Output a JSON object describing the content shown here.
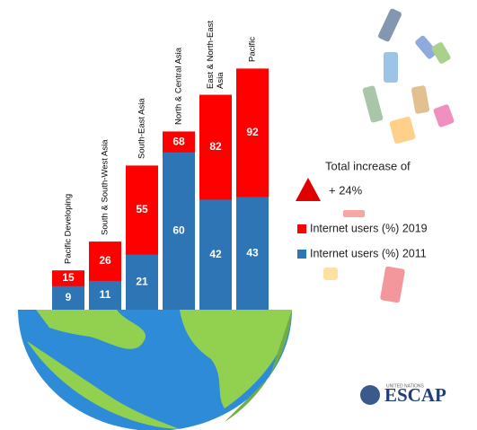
{
  "chart_data": {
    "type": "bar",
    "categories": [
      "Pacific Developing",
      "South & South-West Asia",
      "South-East Asia",
      "North & Central Asia",
      "East & North-East Asia",
      "Pacific"
    ],
    "series": [
      {
        "name": "Internet users (%) 2019",
        "color": "#ff0000",
        "values": [
          15,
          26,
          55,
          68,
          82,
          92
        ]
      },
      {
        "name": "Internet users (%) 2011",
        "color": "#2e75b6",
        "values": [
          9,
          11,
          21,
          60,
          42,
          43
        ]
      }
    ],
    "annotation": {
      "text": "Total increase of",
      "value": "+ 24%"
    },
    "logo": {
      "org": "UNITED NATIONS",
      "name": "ESCAP"
    }
  }
}
